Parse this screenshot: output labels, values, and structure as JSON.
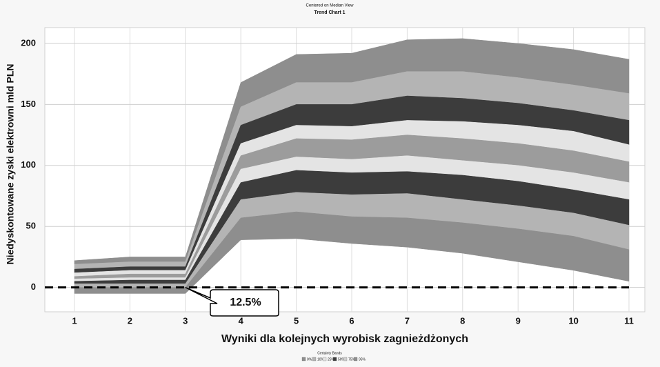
{
  "chart_data": {
    "type": "band",
    "title": "Trend Chart 1",
    "subtitle": "Centered on Median View",
    "y_label": "Niedyskontowane zyski elektrowni mld PLN",
    "x_label": "Wyniki dla kolejnych wyrobisk zagnieżdżonych",
    "categories": [
      "1",
      "2",
      "3",
      "4",
      "5",
      "6",
      "7",
      "8",
      "9",
      "10",
      "11"
    ],
    "ylim": [
      -20,
      213
    ],
    "yticks": [
      0,
      50,
      100,
      150,
      200
    ],
    "grid": true,
    "reference_line": 0,
    "annotation": {
      "text": "12.5%",
      "x": 3,
      "y": 0
    },
    "bands": [
      {
        "color": "#8e8e8e",
        "upper": [
          22,
          25,
          25,
          168,
          191,
          192,
          203,
          204,
          200,
          195,
          187
        ],
        "lower": [
          19,
          21,
          21,
          148,
          168,
          168,
          177,
          177,
          172,
          166,
          159
        ]
      },
      {
        "color": "#b4b4b4",
        "upper": [
          19,
          21,
          21,
          148,
          168,
          168,
          177,
          177,
          172,
          166,
          159
        ],
        "lower": [
          15,
          17,
          17,
          133,
          150,
          150,
          157,
          155,
          151,
          145,
          137
        ]
      },
      {
        "color": "#3c3c3c",
        "upper": [
          15,
          17,
          17,
          133,
          150,
          150,
          157,
          155,
          151,
          145,
          137
        ],
        "lower": [
          12,
          14,
          14,
          118,
          133,
          132,
          137,
          136,
          133,
          128,
          117
        ]
      },
      {
        "color": "#e4e4e4",
        "upper": [
          12,
          14,
          14,
          118,
          133,
          132,
          137,
          136,
          133,
          128,
          117
        ],
        "lower": [
          9,
          11,
          11,
          108,
          122,
          121,
          125,
          122,
          118,
          112,
          103
        ]
      },
      {
        "color": "#9c9c9c",
        "upper": [
          9,
          11,
          11,
          108,
          122,
          121,
          125,
          122,
          118,
          112,
          103
        ],
        "lower": [
          7,
          8,
          8,
          97,
          107,
          105,
          108,
          104,
          100,
          94,
          86
        ]
      },
      {
        "color": "#e4e4e4",
        "upper": [
          7,
          8,
          8,
          97,
          107,
          105,
          108,
          104,
          100,
          94,
          86
        ],
        "lower": [
          5,
          6,
          6,
          86,
          96,
          94,
          95,
          92,
          87,
          80,
          72
        ]
      },
      {
        "color": "#3c3c3c",
        "upper": [
          5,
          6,
          6,
          86,
          96,
          94,
          95,
          92,
          87,
          80,
          72
        ],
        "lower": [
          3,
          3,
          3,
          72,
          78,
          76,
          77,
          72,
          67,
          61,
          51
        ]
      },
      {
        "color": "#b4b4b4",
        "upper": [
          3,
          3,
          3,
          72,
          78,
          76,
          77,
          72,
          67,
          61,
          51
        ],
        "lower": [
          0,
          0,
          0,
          57,
          62,
          58,
          57,
          53,
          48,
          42,
          31
        ]
      },
      {
        "color": "#8e8e8e",
        "upper": [
          0,
          0,
          0,
          57,
          62,
          58,
          57,
          53,
          48,
          42,
          31
        ],
        "lower": [
          -5,
          -5,
          -5,
          39,
          40,
          36,
          33,
          28,
          21,
          14,
          5
        ]
      }
    ],
    "legend_title": "Certainty Bands",
    "legend": [
      {
        "label": "0%",
        "color": "#8e8e8e"
      },
      {
        "label": "10%",
        "color": "#b4b4b4"
      },
      {
        "label": "25%",
        "color": "#e4e4e4"
      },
      {
        "label": "50%",
        "color": "#3c3c3c"
      },
      {
        "label": "75%",
        "color": "#cfcfcf"
      },
      {
        "label": "95%",
        "color": "#8e8e8e"
      }
    ]
  }
}
